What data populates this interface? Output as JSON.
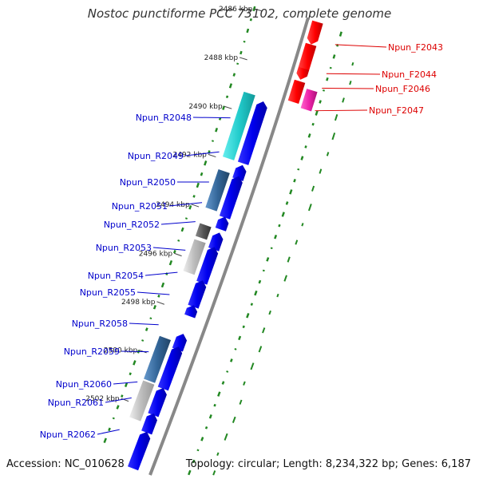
{
  "title": "Nostoc punctiforme PCC 73102, complete genome",
  "accession": "Accession: NC_010628",
  "footer": "Topology: circular; Length: 8,234,322 bp; Genes: 6,187",
  "ticks": [
    {
      "label": "2486 kbp"
    },
    {
      "label": "2488 kbp"
    },
    {
      "label": "2490 kbp"
    },
    {
      "label": "2492 kbp"
    },
    {
      "label": "2494 kbp"
    },
    {
      "label": "2496 kbp"
    },
    {
      "label": "2498 kbp"
    },
    {
      "label": "2500 kbp"
    },
    {
      "label": "2502 kbp"
    }
  ],
  "reverse_genes": [
    {
      "name": "Npun_R2048"
    },
    {
      "name": "Npun_R2049"
    },
    {
      "name": "Npun_R2050"
    },
    {
      "name": "Npun_R2051"
    },
    {
      "name": "Npun_R2052"
    },
    {
      "name": "Npun_R2053"
    },
    {
      "name": "Npun_R2054"
    },
    {
      "name": "Npun_R2055"
    },
    {
      "name": "Npun_R2058"
    },
    {
      "name": "Npun_R2059"
    },
    {
      "name": "Npun_R2060"
    },
    {
      "name": "Npun_R2061"
    },
    {
      "name": "Npun_R2062"
    }
  ],
  "forward_genes": [
    {
      "name": "Npun_F2043"
    },
    {
      "name": "Npun_F2044"
    },
    {
      "name": "Npun_F2046"
    },
    {
      "name": "Npun_F2047"
    }
  ],
  "colors": {
    "reverse_strand": "#0000ee",
    "forward_strand": "#ff0000",
    "backbone": "#888888",
    "gc_marks": "#228822",
    "reverse_label": "#0000cc",
    "forward_label": "#dd0000"
  }
}
